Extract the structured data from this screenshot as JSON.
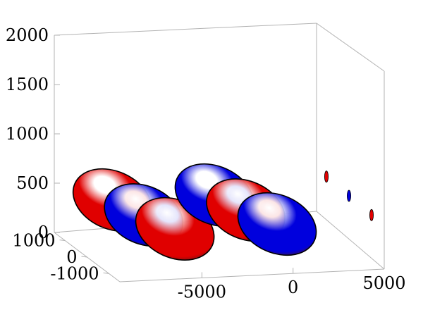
{
  "chart_data": {
    "type": "isosurface-3d",
    "title": "",
    "xlabel": "",
    "ylabel": "",
    "zlabel": "",
    "x_ticks": [
      "-5000",
      "0",
      "5000"
    ],
    "y_ticks": [
      "1000",
      "0",
      "-1000"
    ],
    "z_ticks": [
      "0",
      "500",
      "1000",
      "1500",
      "2000"
    ],
    "xlim": [
      -9500,
      5000
    ],
    "ylim": [
      -1500,
      1500
    ],
    "zlim": [
      0,
      2000
    ],
    "grid": false,
    "legend": "none",
    "colors": {
      "positive": "#e00000",
      "negative": "#0000dd",
      "axis_box": "#b3b3b3"
    },
    "lobes": [
      {
        "group": "left",
        "sign": "positive",
        "color": "#e00000",
        "x": -7400,
        "y": 600,
        "z": 460
      },
      {
        "group": "left",
        "sign": "negative",
        "color": "#0000dd",
        "x": -6400,
        "y": 0,
        "z": 400
      },
      {
        "group": "left",
        "sign": "positive",
        "color": "#e00000",
        "x": -5400,
        "y": -600,
        "z": 350
      },
      {
        "group": "right",
        "sign": "negative",
        "color": "#0000dd",
        "x": -1800,
        "y": 600,
        "z": 460
      },
      {
        "group": "right",
        "sign": "positive",
        "color": "#e00000",
        "x": -800,
        "y": 0,
        "z": 400
      },
      {
        "group": "right",
        "sign": "negative",
        "color": "#0000dd",
        "x": 200,
        "y": -600,
        "z": 350
      }
    ],
    "projections": [
      {
        "sign": "positive",
        "color": "#e00000"
      },
      {
        "sign": "negative",
        "color": "#0000dd"
      },
      {
        "sign": "positive",
        "color": "#e00000"
      }
    ]
  }
}
